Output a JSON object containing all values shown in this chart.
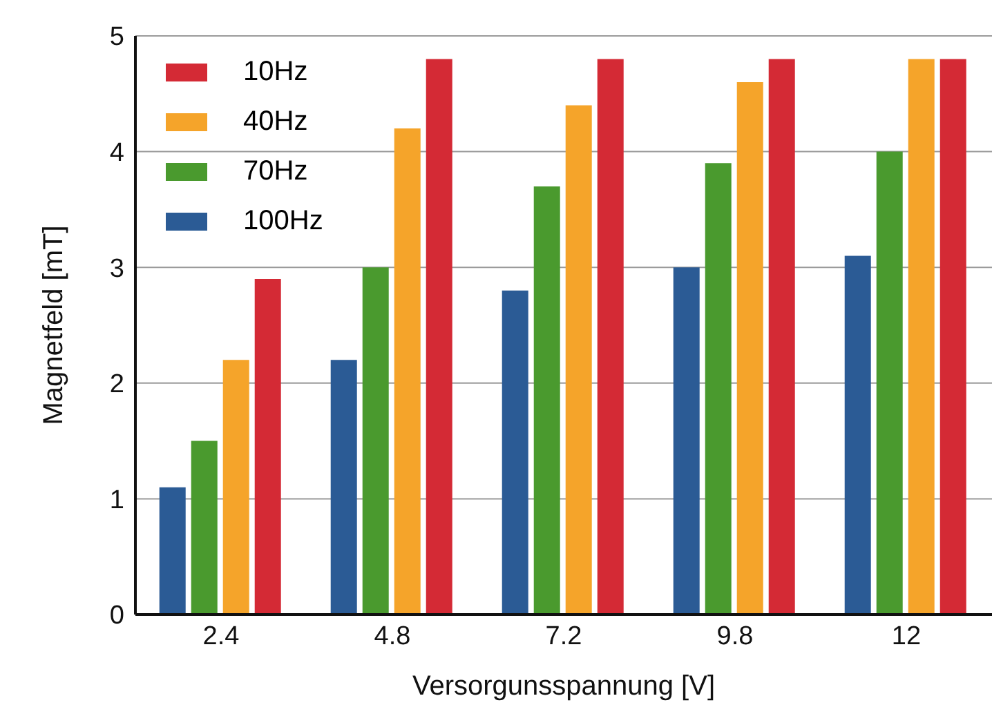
{
  "chart_data": {
    "type": "bar",
    "xlabel": "Versorgunsspannung [V]",
    "ylabel": "Magnetfeld [mT]",
    "categories": [
      "2.4",
      "4.8",
      "7.2",
      "9.8",
      "12"
    ],
    "series": [
      {
        "name": "100Hz",
        "color": "#2b5b95",
        "values": [
          1.1,
          2.2,
          2.8,
          3.0,
          3.1
        ]
      },
      {
        "name": "70Hz",
        "color": "#4a9a2e",
        "values": [
          1.5,
          3.0,
          3.7,
          3.9,
          4.0
        ]
      },
      {
        "name": "40Hz",
        "color": "#f5a42a",
        "values": [
          2.2,
          4.2,
          4.4,
          4.6,
          4.8
        ]
      },
      {
        "name": "10Hz",
        "color": "#d42a35",
        "values": [
          2.9,
          4.8,
          4.8,
          4.8,
          4.8
        ]
      }
    ],
    "ylim": [
      0,
      5
    ],
    "yticks": [
      0,
      1,
      2,
      3,
      4,
      5
    ],
    "grid": "y",
    "legend": "top left"
  }
}
